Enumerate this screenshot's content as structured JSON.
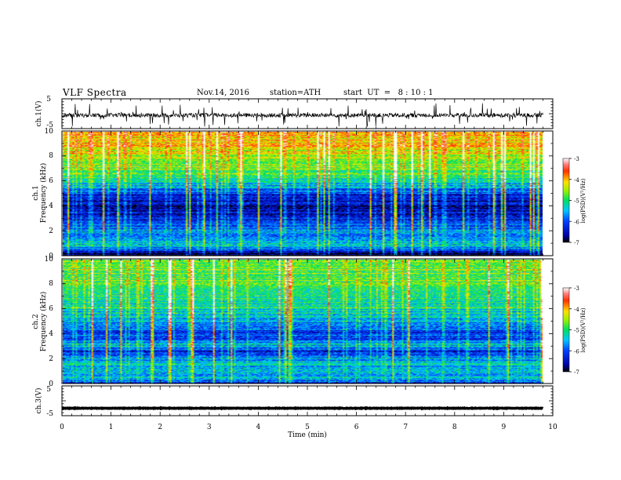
{
  "header": {
    "title": "VLF  Spectra",
    "date": "Nov.14, 2016",
    "station": "station=ATH",
    "start": "start  UT  =   8 : 10 : 1"
  },
  "chart_data": [
    {
      "type": "line",
      "panel": "ch1-waveform",
      "ylabel": "ch.1(V)",
      "ylim": [
        -5,
        5
      ],
      "yticks": [
        "5",
        "-5"
      ],
      "xlim": [
        0,
        10
      ],
      "series": [
        {
          "values_description_only": false,
          "mean": -0.5,
          "noise_amp": 1.2
        }
      ]
    },
    {
      "type": "heatmap",
      "panel": "ch1-spectrogram",
      "ylabel": "ch.1\nFrequency  (kHz)",
      "ylim": [
        0,
        10
      ],
      "yticks": [
        "0",
        "2",
        "4",
        "6",
        "8",
        "10"
      ],
      "xlim": [
        0,
        9.8
      ],
      "colorbar": {
        "ticks": [
          "-3",
          "-4",
          "-5",
          "-6",
          "-7"
        ],
        "label": "log(PSD)(V²/Hz)",
        "range": [
          -7,
          -3
        ]
      },
      "profile": [
        {
          "f": 0.0,
          "v": -7.0
        },
        {
          "f": 0.3,
          "v": -6.6
        },
        {
          "f": 0.8,
          "v": -5.2
        },
        {
          "f": 1.2,
          "v": -5.8
        },
        {
          "f": 2.0,
          "v": -5.7
        },
        {
          "f": 2.6,
          "v": -5.9
        },
        {
          "f": 3.0,
          "v": -6.5
        },
        {
          "f": 4.0,
          "v": -6.6
        },
        {
          "f": 5.0,
          "v": -6.2
        },
        {
          "f": 6.0,
          "v": -5.1
        },
        {
          "f": 7.0,
          "v": -4.7
        },
        {
          "f": 8.0,
          "v": -4.4
        },
        {
          "f": 9.0,
          "v": -4.1
        },
        {
          "f": 10.0,
          "v": -4.0
        }
      ]
    },
    {
      "type": "heatmap",
      "panel": "ch2-spectrogram",
      "ylabel": "ch.2\nFrequency  (kHz)",
      "ylim": [
        0,
        10
      ],
      "yticks": [
        "0",
        "2",
        "4",
        "6",
        "8",
        "10"
      ],
      "xlim": [
        0,
        9.8
      ],
      "colorbar": {
        "ticks": [
          "-3",
          "-4",
          "-5",
          "-6",
          "-7"
        ],
        "label": "log(PSD)(V²/Hz)",
        "range": [
          -7,
          -3
        ]
      },
      "profile": [
        {
          "f": 0.0,
          "v": -6.2
        },
        {
          "f": 0.5,
          "v": -5.4
        },
        {
          "f": 1.0,
          "v": -5.6
        },
        {
          "f": 1.5,
          "v": -5.5
        },
        {
          "f": 2.0,
          "v": -5.6
        },
        {
          "f": 2.5,
          "v": -6.4
        },
        {
          "f": 3.0,
          "v": -5.5
        },
        {
          "f": 4.0,
          "v": -6.2
        },
        {
          "f": 5.0,
          "v": -5.6
        },
        {
          "f": 6.0,
          "v": -5.2
        },
        {
          "f": 7.0,
          "v": -5.0
        },
        {
          "f": 8.0,
          "v": -4.9
        },
        {
          "f": 9.0,
          "v": -4.8
        },
        {
          "f": 10.0,
          "v": -4.7
        }
      ]
    },
    {
      "type": "line",
      "panel": "ch3-waveform",
      "ylabel": "ch.3(V)",
      "ylim": [
        -5,
        5
      ],
      "yticks": [
        "5",
        "-5"
      ],
      "xlim": [
        0,
        10
      ],
      "series": [
        {
          "mean": -2.5
        }
      ]
    }
  ],
  "xaxis": {
    "label": "Time  (min)",
    "ticks": [
      "0",
      "1",
      "2",
      "3",
      "4",
      "5",
      "6",
      "7",
      "8",
      "9",
      "10"
    ]
  }
}
